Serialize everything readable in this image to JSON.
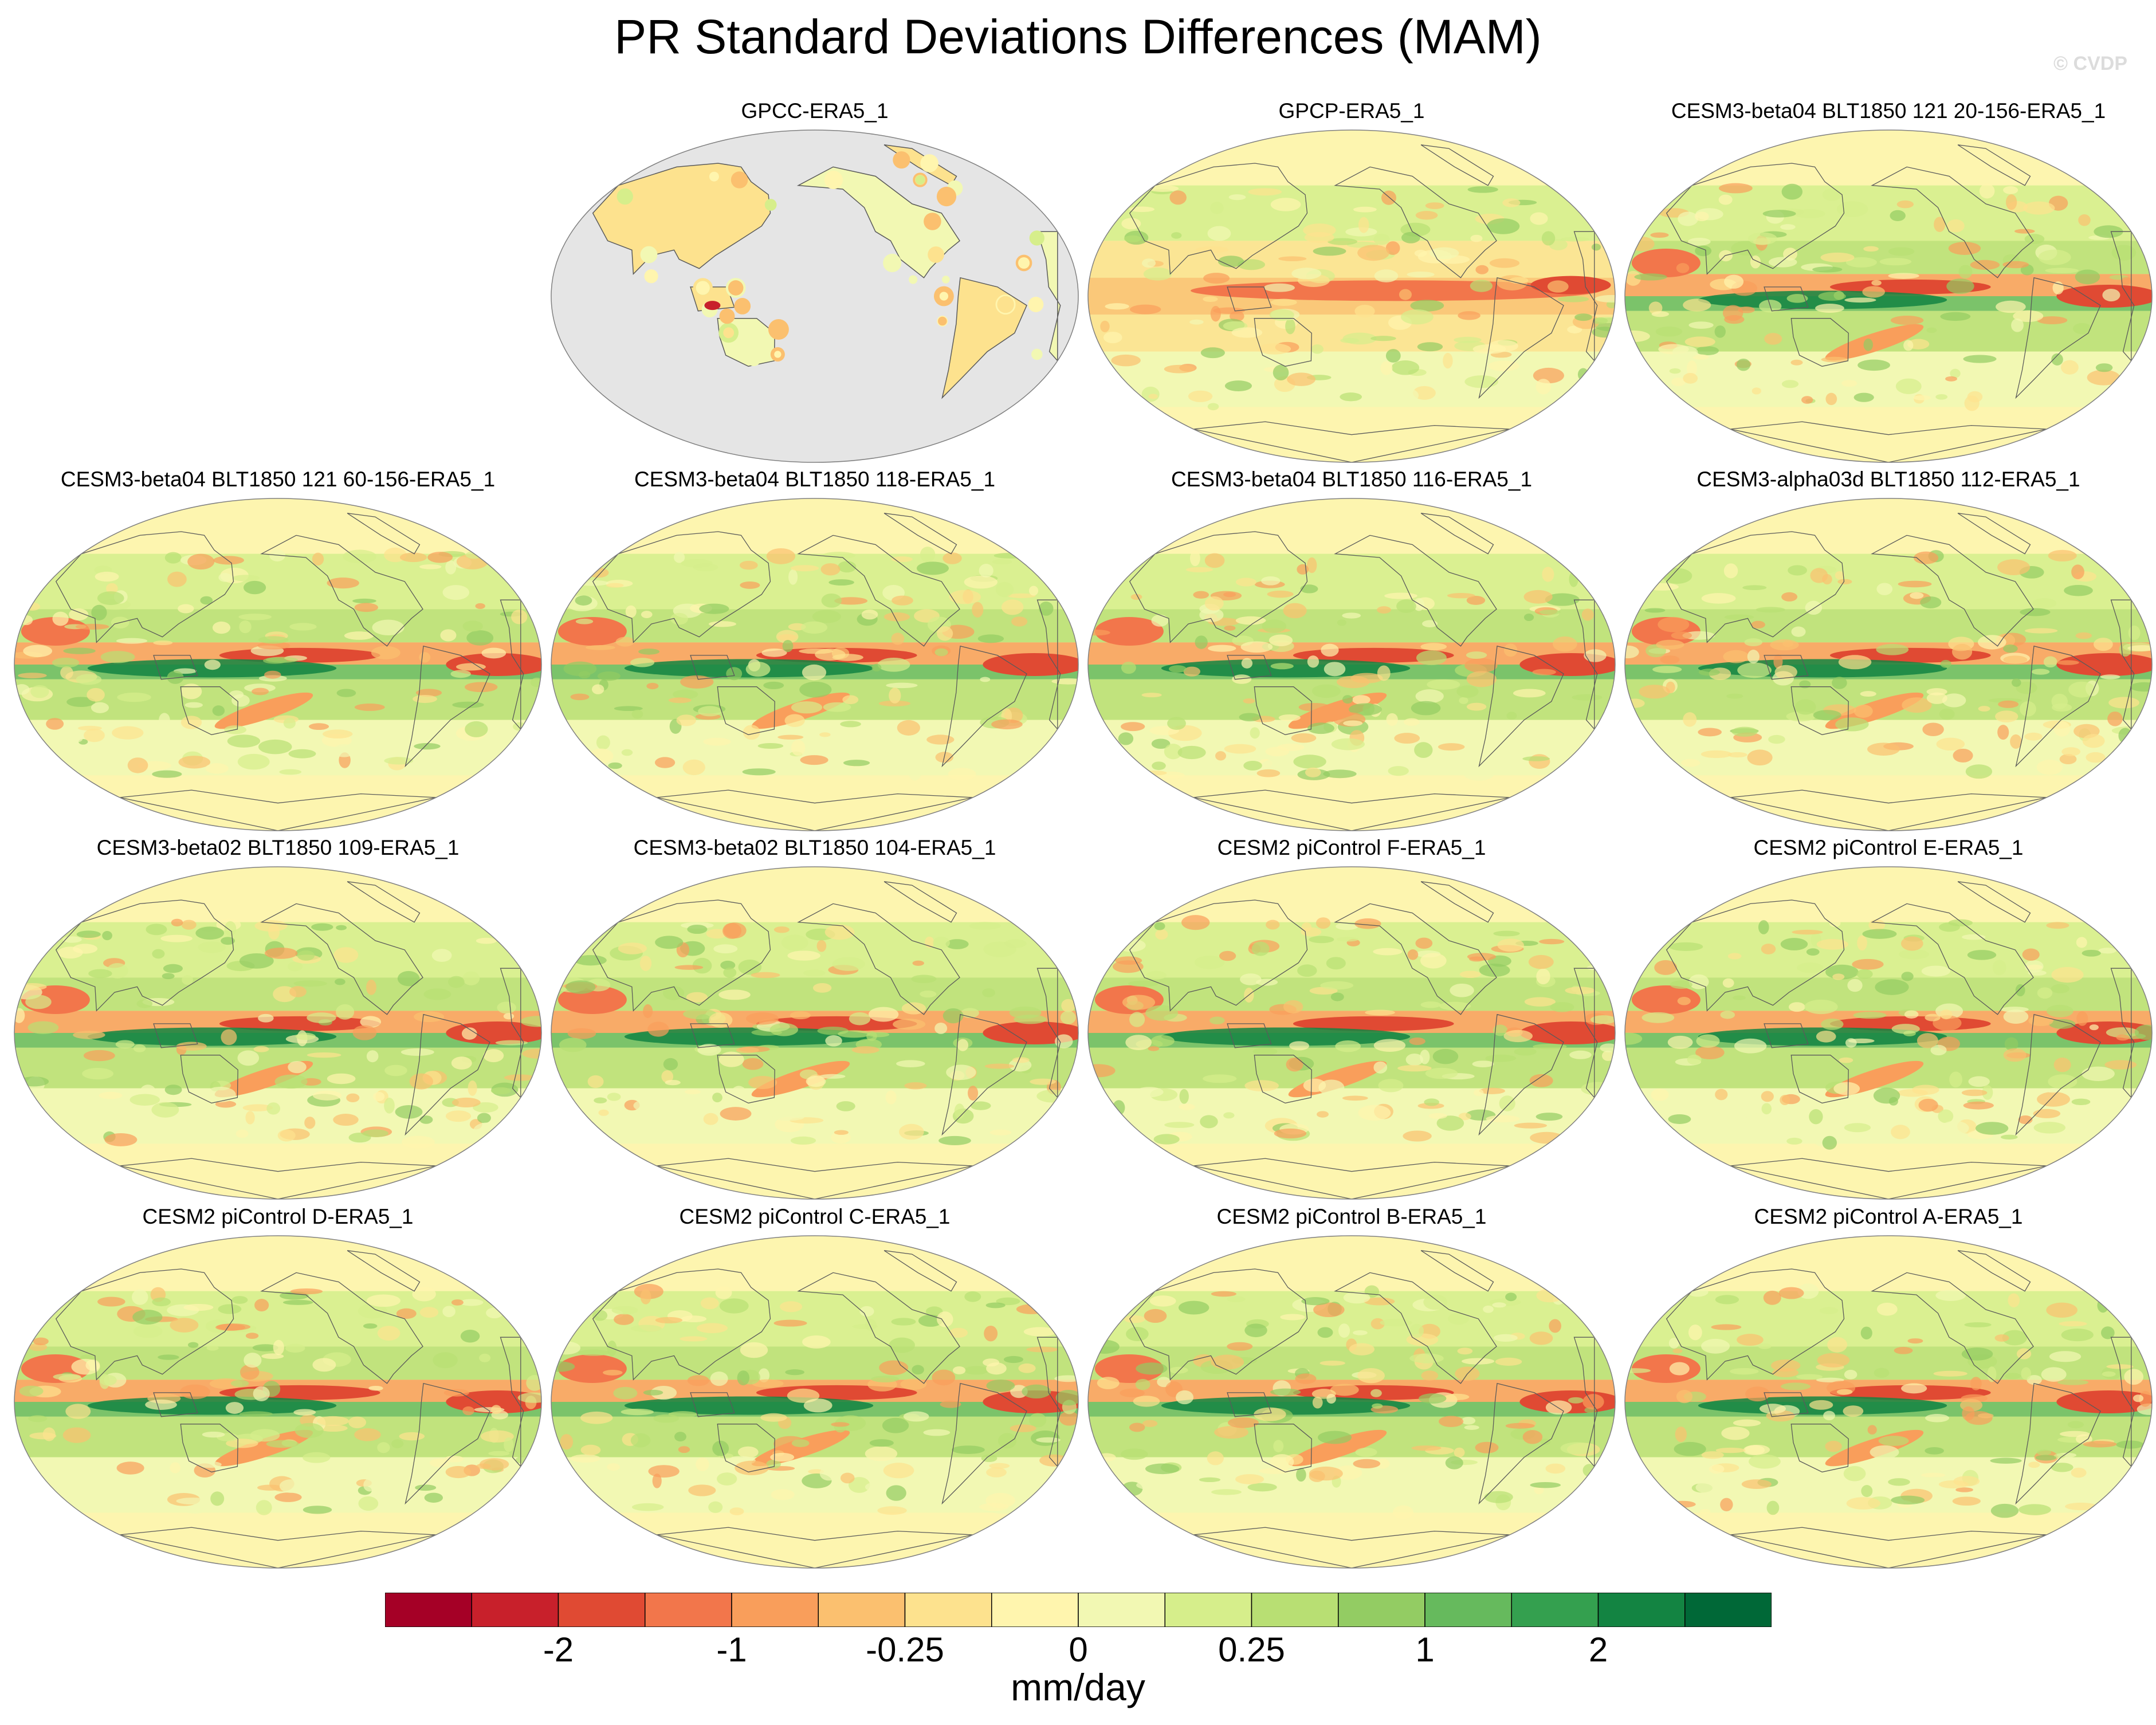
{
  "title": "PR Standard Deviations Differences (MAM)",
  "watermark": "© CVDP",
  "panels": [
    {
      "label": "GPCC-ERA5_1",
      "kind": "land"
    },
    {
      "label": "GPCP-ERA5_1",
      "kind": "obs"
    },
    {
      "label": "CESM3-beta04 BLT1850 121 20-156-ERA5_1",
      "kind": "model"
    },
    {
      "label": "CESM3-beta04 BLT1850 121 60-156-ERA5_1",
      "kind": "model"
    },
    {
      "label": "CESM3-beta04 BLT1850 118-ERA5_1",
      "kind": "model"
    },
    {
      "label": "CESM3-beta04 BLT1850 116-ERA5_1",
      "kind": "model"
    },
    {
      "label": "CESM3-alpha03d BLT1850 112-ERA5_1",
      "kind": "model"
    },
    {
      "label": "CESM3-beta02 BLT1850 109-ERA5_1",
      "kind": "model"
    },
    {
      "label": "CESM3-beta02 BLT1850 104-ERA5_1",
      "kind": "model"
    },
    {
      "label": "CESM2 piControl F-ERA5_1",
      "kind": "model"
    },
    {
      "label": "CESM2 piControl E-ERA5_1",
      "kind": "model"
    },
    {
      "label": "CESM2 piControl D-ERA5_1",
      "kind": "model"
    },
    {
      "label": "CESM2 piControl C-ERA5_1",
      "kind": "model"
    },
    {
      "label": "CESM2 piControl B-ERA5_1",
      "kind": "model"
    },
    {
      "label": "CESM2 piControl A-ERA5_1",
      "kind": "model"
    }
  ],
  "colorbar": {
    "colors": [
      "#a50026",
      "#c8202b",
      "#e04a33",
      "#f2764b",
      "#f99e5b",
      "#fbc06f",
      "#fde28e",
      "#fff5ae",
      "#f2f8b3",
      "#d6ee8b",
      "#b8df73",
      "#93cc63",
      "#66ba5d",
      "#34a04f",
      "#138442",
      "#006837"
    ],
    "labels": [
      "-2",
      "-1",
      "-0.25",
      "0",
      "0.25",
      "1",
      "2"
    ],
    "units": "mm/day"
  },
  "map_colors": {
    "land_background": "#e5e5e5",
    "coastline": "#5a5a5a"
  }
}
